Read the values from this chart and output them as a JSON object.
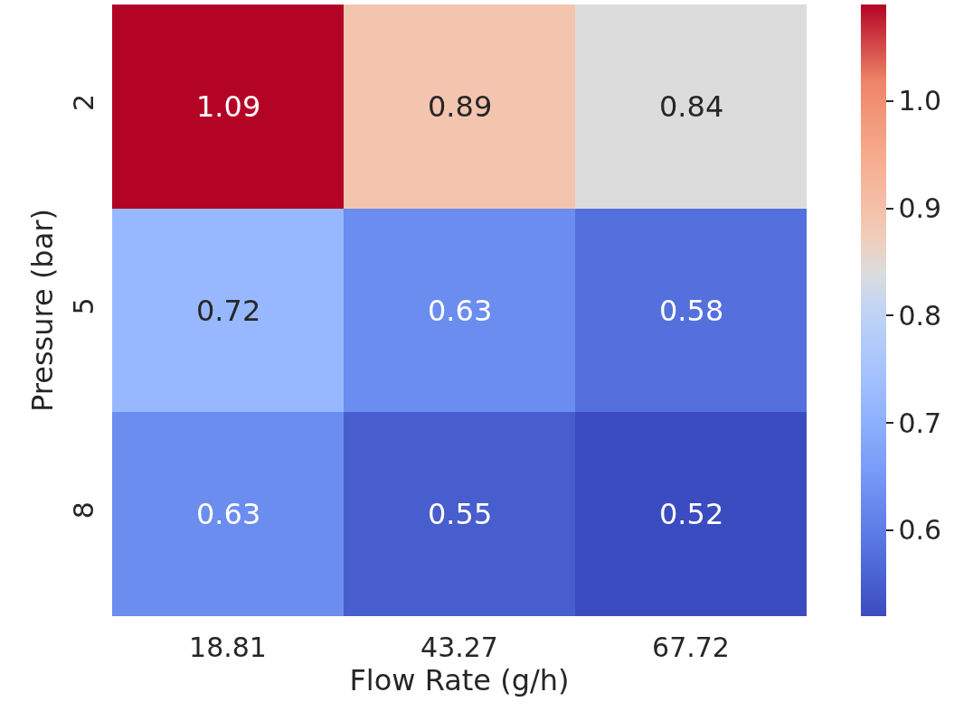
{
  "chart_data": {
    "type": "heatmap",
    "xlabel": "Flow Rate (g/h)",
    "ylabel": "Pressure (bar)",
    "categories": [
      "18.81",
      "43.27",
      "67.72"
    ],
    "y_categories": [
      "2",
      "5",
      "8"
    ],
    "cells": [
      [
        1.09,
        0.89,
        0.84
      ],
      [
        0.72,
        0.63,
        0.58
      ],
      [
        0.63,
        0.55,
        0.52
      ]
    ],
    "data_labels": true,
    "clim": [
      0.52,
      1.09
    ],
    "cticks": [
      0.6,
      0.7,
      0.8,
      0.9,
      {
        "value": 1,
        "label": "1.0"
      }
    ]
  }
}
